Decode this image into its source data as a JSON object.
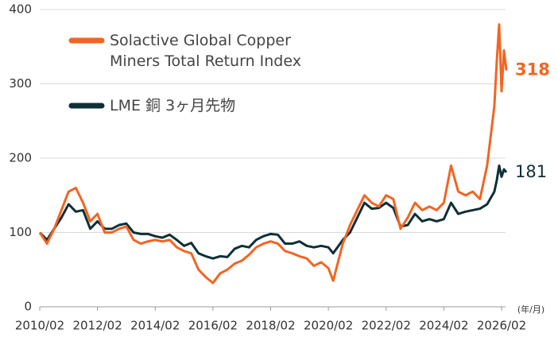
{
  "chart_data": {
    "type": "line",
    "x_label": "(年/月)",
    "x": [
      "2010/02",
      "2010/05",
      "2010/08",
      "2010/11",
      "2011/02",
      "2011/05",
      "2011/08",
      "2011/11",
      "2012/02",
      "2012/05",
      "2012/08",
      "2012/11",
      "2013/02",
      "2013/05",
      "2013/08",
      "2013/11",
      "2014/02",
      "2014/05",
      "2014/08",
      "2014/11",
      "2015/02",
      "2015/05",
      "2015/08",
      "2015/11",
      "2016/02",
      "2016/05",
      "2016/08",
      "2016/11",
      "2017/02",
      "2017/05",
      "2017/08",
      "2017/11",
      "2018/02",
      "2018/05",
      "2018/08",
      "2018/11",
      "2019/02",
      "2019/05",
      "2019/08",
      "2019/11",
      "2020/02",
      "2020/04",
      "2020/08",
      "2020/11",
      "2021/02",
      "2021/05",
      "2021/08",
      "2021/11",
      "2022/02",
      "2022/05",
      "2022/08",
      "2022/11",
      "2023/02",
      "2023/05",
      "2023/08",
      "2023/11",
      "2024/02",
      "2024/05",
      "2024/08",
      "2024/11",
      "2025/02",
      "2025/05",
      "2025/08",
      "2025/11",
      "2025/12",
      "2026/01",
      "2026/02",
      "2026/03",
      "2026/04"
    ],
    "series": [
      {
        "name": "Solactive Global Copper Miners Total Return Index",
        "color": "#f26522",
        "values": [
          100,
          85,
          105,
          130,
          155,
          160,
          140,
          115,
          125,
          100,
          100,
          105,
          108,
          90,
          85,
          88,
          90,
          88,
          90,
          80,
          75,
          72,
          50,
          40,
          32,
          45,
          50,
          58,
          62,
          70,
          80,
          85,
          88,
          85,
          75,
          72,
          68,
          65,
          55,
          60,
          52,
          35,
          85,
          110,
          130,
          150,
          140,
          135,
          150,
          145,
          105,
          120,
          140,
          130,
          135,
          130,
          140,
          190,
          155,
          150,
          155,
          145,
          190,
          270,
          330,
          380,
          290,
          345,
          318
        ]
      },
      {
        "name": "LME 銅 3ヶ月先物",
        "color": "#0f2f36",
        "values": [
          100,
          90,
          105,
          120,
          138,
          128,
          130,
          105,
          115,
          105,
          105,
          110,
          112,
          100,
          98,
          98,
          95,
          93,
          97,
          90,
          82,
          86,
          72,
          68,
          65,
          68,
          67,
          78,
          82,
          80,
          90,
          95,
          98,
          97,
          85,
          85,
          88,
          82,
          80,
          82,
          80,
          72,
          90,
          100,
          120,
          140,
          132,
          133,
          140,
          133,
          108,
          110,
          125,
          115,
          118,
          115,
          118,
          140,
          125,
          128,
          130,
          132,
          138,
          155,
          170,
          190,
          175,
          185,
          181
        ]
      }
    ],
    "xticks": [
      "2010/02",
      "2012/02",
      "2014/02",
      "2016/02",
      "2018/02",
      "2020/02",
      "2022/02",
      "2024/02",
      "2026/02"
    ],
    "ylim": [
      0,
      400
    ],
    "yticks": [
      0,
      100,
      200,
      300,
      400
    ],
    "grid": true
  }
}
